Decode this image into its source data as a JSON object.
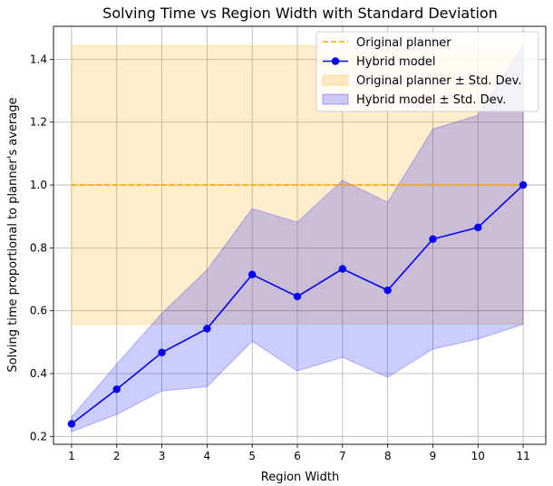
{
  "chart_data": {
    "type": "line",
    "title": "Solving Time vs Region Width with Standard Deviation",
    "xlabel": "Region Width",
    "ylabel": "Solving time proportional to planner's average",
    "x": [
      1,
      2,
      3,
      4,
      5,
      6,
      7,
      8,
      9,
      10,
      11
    ],
    "xlim": [
      0.6,
      11.5
    ],
    "ylim": [
      0.175,
      1.505
    ],
    "yticks": [
      0.2,
      0.4,
      0.6,
      0.8,
      1.0,
      1.2,
      1.4
    ],
    "ytick_labels": [
      "0.2",
      "0.4",
      "0.6",
      "0.8",
      "1.0",
      "1.2",
      "1.4"
    ],
    "xtick_labels": [
      "1",
      "2",
      "3",
      "4",
      "5",
      "6",
      "7",
      "8",
      "9",
      "10",
      "11"
    ],
    "grid": true,
    "legend_position": "top-right",
    "series": [
      {
        "name": "Original planner",
        "style": "dashed",
        "color": "#ffa500",
        "values": [
          1.0,
          1.0,
          1.0,
          1.0,
          1.0,
          1.0,
          1.0,
          1.0,
          1.0,
          1.0,
          1.0
        ]
      },
      {
        "name": "Hybrid model",
        "style": "solid-marker",
        "color": "#0000ff",
        "values": [
          0.24,
          0.35,
          0.467,
          0.543,
          0.715,
          0.645,
          0.733,
          0.665,
          0.828,
          0.865,
          1.0
        ]
      }
    ],
    "bands": [
      {
        "name": "Original planner ± Std. Dev.",
        "color": "#ffa500",
        "lower": [
          0.557,
          0.557,
          0.557,
          0.557,
          0.557,
          0.557,
          0.557,
          0.557,
          0.557,
          0.557,
          0.557
        ],
        "upper": [
          1.443,
          1.443,
          1.443,
          1.443,
          1.443,
          1.443,
          1.443,
          1.443,
          1.443,
          1.443,
          1.443
        ]
      },
      {
        "name": "Hybrid model ± Std. Dev.",
        "color": "#0000ff",
        "lower": [
          0.215,
          0.27,
          0.345,
          0.358,
          0.503,
          0.408,
          0.452,
          0.388,
          0.478,
          0.51,
          0.557
        ],
        "upper": [
          0.262,
          0.43,
          0.592,
          0.73,
          0.925,
          0.882,
          1.015,
          0.945,
          1.178,
          1.222,
          1.443
        ]
      }
    ]
  }
}
